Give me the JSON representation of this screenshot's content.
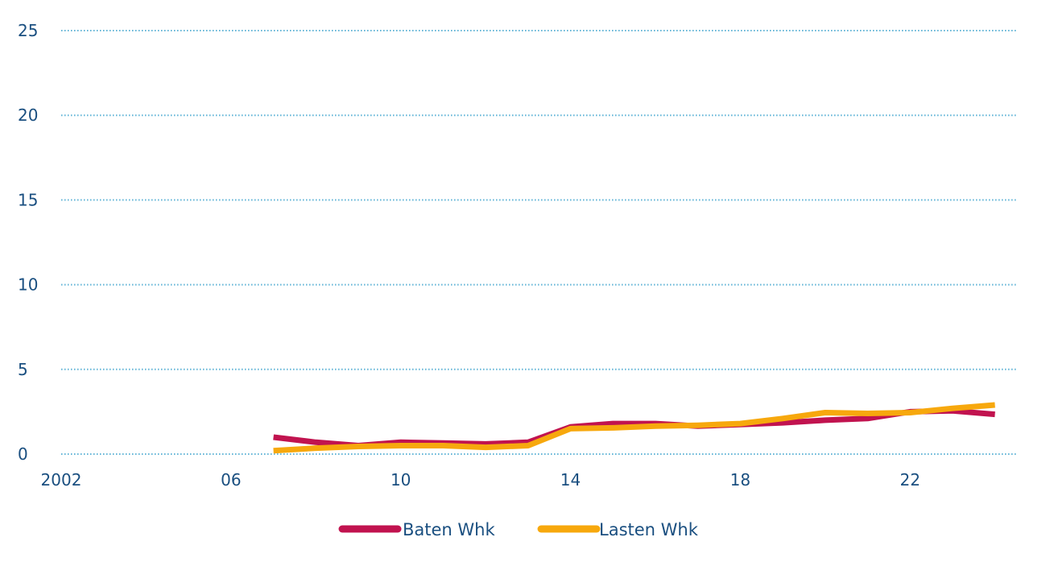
{
  "chart_data": {
    "type": "line",
    "title": "",
    "xlabel": "",
    "ylabel": "",
    "xlim": [
      2002,
      2024.5
    ],
    "ylim": [
      0,
      25
    ],
    "grid": true,
    "legend_position": "bottom-center",
    "x_ticks": [
      {
        "value": 2002,
        "label": "2002"
      },
      {
        "value": 2006,
        "label": "06"
      },
      {
        "value": 2010,
        "label": "10"
      },
      {
        "value": 2014,
        "label": "14"
      },
      {
        "value": 2018,
        "label": "18"
      },
      {
        "value": 2022,
        "label": "22"
      }
    ],
    "y_ticks": [
      {
        "value": 0,
        "label": "0"
      },
      {
        "value": 5,
        "label": "5"
      },
      {
        "value": 10,
        "label": "10"
      },
      {
        "value": 15,
        "label": "15"
      },
      {
        "value": 20,
        "label": "20"
      },
      {
        "value": 25,
        "label": "25"
      }
    ],
    "x": [
      2007,
      2008,
      2009,
      2010,
      2011,
      2012,
      2013,
      2014,
      2015,
      2016,
      2017,
      2018,
      2019,
      2020,
      2021,
      2022,
      2023,
      2024
    ],
    "series": [
      {
        "name": "Baten Whk",
        "color": "#c1134f",
        "values": [
          1.0,
          0.7,
          0.5,
          0.7,
          0.65,
          0.6,
          0.7,
          1.6,
          1.8,
          1.8,
          1.65,
          1.75,
          1.85,
          2.0,
          2.1,
          2.5,
          2.55,
          2.35
        ]
      },
      {
        "name": "Lasten Whk",
        "color": "#f7a80d",
        "values": [
          0.2,
          0.35,
          0.45,
          0.5,
          0.5,
          0.4,
          0.5,
          1.5,
          1.55,
          1.65,
          1.7,
          1.8,
          2.1,
          2.45,
          2.4,
          2.45,
          2.7,
          2.9
        ]
      }
    ]
  }
}
